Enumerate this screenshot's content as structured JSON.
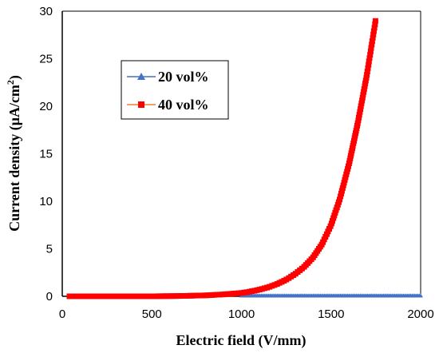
{
  "chart_data": {
    "type": "scatter",
    "title": "",
    "xlabel": "Electric field (V/mm)",
    "ylabel_main": "Current density (μA/cm",
    "ylabel_sup": "2",
    "ylabel_close": ")",
    "xlim": [
      0,
      2000
    ],
    "ylim": [
      0,
      30
    ],
    "xticks": [
      "0",
      "500",
      "1000",
      "1500",
      "2000"
    ],
    "yticks": [
      "0",
      "5",
      "10",
      "15",
      "20",
      "25",
      "30"
    ],
    "grid": false,
    "legend_position": "upper-left",
    "series": [
      {
        "name": "20 vol%",
        "color": "#4472c4",
        "marker": "triangle",
        "x_range": [
          1000,
          2000
        ],
        "y_constant": 0.05
      },
      {
        "name": "40 vol%",
        "color": "#ff0000",
        "line_color": "#ed7d31",
        "marker": "square",
        "x": [
          40,
          100,
          200,
          300,
          400,
          500,
          600,
          700,
          800,
          900,
          1000,
          1050,
          1100,
          1150,
          1200,
          1250,
          1300,
          1350,
          1400,
          1450,
          1500,
          1550,
          1600,
          1650,
          1700,
          1750
        ],
        "y": [
          0,
          0,
          0,
          0,
          0,
          0,
          0.02,
          0.05,
          0.1,
          0.2,
          0.35,
          0.5,
          0.7,
          0.95,
          1.3,
          1.75,
          2.35,
          3.1,
          4.1,
          5.5,
          7.5,
          10.3,
          13.9,
          18.3,
          23.3,
          29.2
        ]
      }
    ]
  }
}
